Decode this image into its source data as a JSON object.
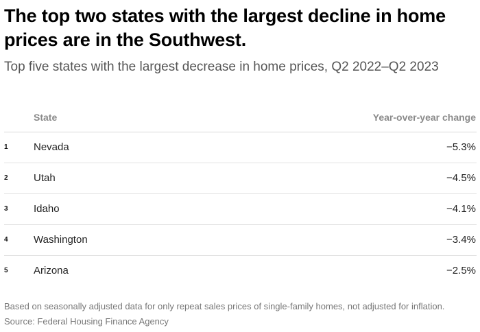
{
  "title": "The top two states with the largest decline in home prices are in the Southwest.",
  "subtitle": "Top five states with the largest decrease in home prices, Q2 2022–Q2 2023",
  "columns": {
    "state": "State",
    "change": "Year-over-year change"
  },
  "chart_data": {
    "type": "table",
    "title": "The top two states with the largest decline in home prices are in the Southwest.",
    "subtitle": "Top five states with the largest decrease in home prices, Q2 2022–Q2 2023",
    "columns": [
      "",
      "State",
      "Year-over-year change"
    ],
    "rows": [
      {
        "rank": "1",
        "state": "Nevada",
        "change": "−5.3%",
        "value": -5.3
      },
      {
        "rank": "2",
        "state": "Utah",
        "change": "−4.5%",
        "value": -4.5
      },
      {
        "rank": "3",
        "state": "Idaho",
        "change": "−4.1%",
        "value": -4.1
      },
      {
        "rank": "4",
        "state": "Washington",
        "change": "−3.4%",
        "value": -3.4
      },
      {
        "rank": "5",
        "state": "Arizona",
        "change": "−2.5%",
        "value": -2.5
      }
    ]
  },
  "note": "Based on seasonally adjusted data for only repeat sales prices of single-family homes, not adjusted for inflation.",
  "source": "Source: Federal Housing Finance Agency"
}
